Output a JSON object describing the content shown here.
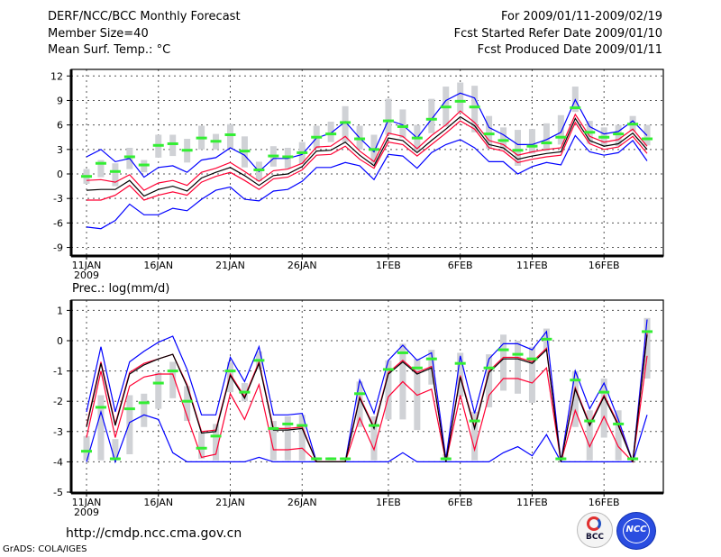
{
  "header": {
    "title": "DERF/NCC/BCC Monthly Forecast",
    "member_size": "Member Size=40",
    "variable": "Mean Surf. Temp.: °C",
    "period": "For 2009/01/11-2009/02/19",
    "started": "Fcst Started Refer Date 2009/01/10",
    "produced": "Fcst Produced Date 2009/01/11"
  },
  "footer": {
    "url": "http://cmdp.ncc.cma.gov.cn",
    "grads": "GrADS: COLA/IGES",
    "logo_bcc": "BCC",
    "logo_ncc": "NCC"
  },
  "colors": {
    "envelope": "#0000ff",
    "spread": "#ff0033",
    "mean": "#000000",
    "observed": "#33ee33",
    "range": "#d0d2d6"
  },
  "chart_data": [
    {
      "type": "line",
      "title": "Mean Surf. Temp.: °C",
      "x_tick_labels": [
        "11JAN",
        "16JAN",
        "21JAN",
        "26JAN",
        "1FEB",
        "6FEB",
        "11FEB",
        "16FEB"
      ],
      "x_tick_days": [
        0,
        5,
        10,
        15,
        21,
        26,
        31,
        36
      ],
      "year_label": "2009",
      "y_ticks": [
        12,
        9,
        6,
        3,
        0,
        -3,
        -6,
        -9
      ],
      "ylim": [
        -10.5,
        13.2
      ],
      "days": 40,
      "grid": true,
      "series": [
        {
          "name": "max",
          "color": "#0000ff",
          "values": [
            2.1,
            3.0,
            1.5,
            1.9,
            -0.4,
            0.8,
            1.0,
            0.2,
            1.7,
            2.0,
            3.2,
            2.3,
            0.3,
            1.9,
            1.9,
            2.4,
            4.4,
            5.0,
            6.4,
            4.4,
            2.7,
            6.6,
            6.0,
            4.4,
            6.7,
            9.0,
            9.9,
            9.3,
            5.7,
            4.8,
            3.6,
            3.6,
            4.2,
            5.1,
            9.1,
            5.8,
            4.9,
            5.2,
            6.5,
            4.7
          ]
        },
        {
          "name": "min",
          "color": "#0000ff",
          "values": [
            -6.5,
            -6.7,
            -5.7,
            -3.7,
            -5.0,
            -5.0,
            -4.2,
            -4.5,
            -3.1,
            -2.0,
            -1.6,
            -3.1,
            -3.3,
            -2.1,
            -1.9,
            -0.9,
            0.8,
            0.8,
            1.4,
            1.0,
            -0.7,
            2.4,
            2.2,
            0.7,
            2.6,
            3.6,
            4.2,
            3.2,
            1.5,
            1.5,
            0.0,
            0.9,
            1.4,
            1.1,
            4.7,
            2.7,
            2.3,
            2.6,
            4.1,
            1.6
          ]
        },
        {
          "name": "upper",
          "color": "#ff0033",
          "values": [
            -0.8,
            -0.7,
            -1.0,
            -0.1,
            -2.0,
            -1.1,
            -0.8,
            -1.4,
            0.2,
            0.7,
            1.4,
            0.3,
            -0.9,
            0.4,
            0.6,
            1.3,
            3.3,
            3.4,
            4.6,
            2.8,
            1.5,
            5.0,
            4.6,
            3.1,
            4.7,
            6.0,
            7.7,
            6.3,
            4.1,
            3.6,
            2.3,
            2.7,
            3.0,
            3.2,
            7.3,
            4.6,
            3.9,
            4.2,
            5.5,
            3.4
          ]
        },
        {
          "name": "lower",
          "color": "#ff0033",
          "values": [
            -3.2,
            -3.2,
            -2.6,
            -1.4,
            -3.2,
            -2.6,
            -2.2,
            -2.6,
            -1.0,
            -0.3,
            0.2,
            -0.8,
            -1.9,
            -0.6,
            -0.4,
            0.5,
            2.3,
            2.4,
            3.4,
            1.8,
            0.7,
            3.9,
            3.6,
            2.2,
            3.6,
            5.0,
            6.5,
            5.5,
            3.2,
            2.8,
            1.4,
            1.8,
            2.1,
            2.3,
            6.3,
            3.7,
            3.0,
            3.3,
            4.6,
            2.5
          ]
        },
        {
          "name": "mean",
          "color": "#000000",
          "values": [
            -2.0,
            -1.9,
            -1.9,
            -0.8,
            -2.7,
            -1.9,
            -1.5,
            -2.1,
            -0.5,
            0.2,
            0.8,
            -0.2,
            -1.4,
            -0.2,
            0.0,
            0.9,
            2.8,
            2.9,
            3.9,
            2.3,
            1.0,
            4.4,
            4.1,
            2.6,
            4.1,
            5.5,
            7.0,
            5.9,
            3.6,
            3.2,
            1.8,
            2.2,
            2.5,
            2.7,
            6.8,
            4.1,
            3.4,
            3.7,
            5.0,
            3.0
          ]
        }
      ],
      "range_hi": [
        0.6,
        1.7,
        1.3,
        3.2,
        1.7,
        4.8,
        4.8,
        4.3,
        5.9,
        4.9,
        6.1,
        4.6,
        1.5,
        3.4,
        3.2,
        3.9,
        5.9,
        6.4,
        8.3,
        5.9,
        4.8,
        9.2,
        7.9,
        6.0,
        9.2,
        10.7,
        11.2,
        10.8,
        7.1,
        5.7,
        5.4,
        5.5,
        6.2,
        7.2,
        10.7,
        6.5,
        5.7,
        6.0,
        7.1,
        6.0
      ],
      "range_lo": [
        -1.2,
        -0.4,
        -1.5,
        0.6,
        0.2,
        2.0,
        2.2,
        1.4,
        3.0,
        3.0,
        3.1,
        0.8,
        -0.9,
        0.9,
        0.7,
        1.2,
        3.1,
        3.9,
        3.9,
        3.0,
        1.2,
        4.8,
        4.4,
        2.7,
        5.0,
        5.8,
        7.6,
        5.1,
        3.1,
        3.0,
        1.0,
        2.5,
        2.8,
        3.6,
        7.6,
        3.7,
        3.5,
        3.4,
        5.2,
        3.5
      ],
      "observed": [
        -0.3,
        1.3,
        0.3,
        2.1,
        1.1,
        3.5,
        3.7,
        2.9,
        4.4,
        4.0,
        4.8,
        2.8,
        0.5,
        2.2,
        2.1,
        2.6,
        4.5,
        4.9,
        6.3,
        4.3,
        3.0,
        6.5,
        5.8,
        4.4,
        6.7,
        8.2,
        8.9,
        8.2,
        4.9,
        4.1,
        2.9,
        3.4,
        3.8,
        4.5,
        8.1,
        5.1,
        4.5,
        4.9,
        6.1,
        4.3
      ]
    },
    {
      "type": "line",
      "title": "Prec.: log(mm/d)",
      "x_tick_labels": [
        "11JAN",
        "16JAN",
        "21JAN",
        "26JAN",
        "1FEB",
        "6FEB",
        "11FEB",
        "16FEB"
      ],
      "x_tick_days": [
        0,
        5,
        10,
        15,
        21,
        26,
        31,
        36
      ],
      "year_label": "2009",
      "y_ticks": [
        1,
        0,
        -1,
        -2,
        -3,
        -4,
        -5
      ],
      "ylim": [
        -5,
        1.35
      ],
      "days": 40,
      "grid": true,
      "series": [
        {
          "name": "max",
          "color": "#0000ff",
          "values": [
            -2.35,
            -0.2,
            -2.35,
            -0.7,
            -0.35,
            -0.05,
            0.15,
            -0.95,
            -2.45,
            -2.45,
            -0.55,
            -1.35,
            -0.2,
            -2.45,
            -2.45,
            -2.4,
            -4,
            -4,
            -4,
            -1.3,
            -2.4,
            -0.65,
            -0.15,
            -0.65,
            -0.4,
            -3.9,
            -0.5,
            -2.4,
            -0.6,
            -0.1,
            -0.1,
            -0.3,
            0.3,
            -4,
            -1.0,
            -2.25,
            -1.4,
            -2.6,
            -4,
            0.7
          ]
        },
        {
          "name": "min",
          "color": "#0000ff",
          "values": [
            -4,
            -2.35,
            -4,
            -2.7,
            -2.45,
            -2.6,
            -3.7,
            -4,
            -4,
            -4,
            -4,
            -4,
            -3.85,
            -4,
            -4,
            -4,
            -4,
            -4,
            -4,
            -4,
            -4,
            -4,
            -3.7,
            -4,
            -4,
            -4,
            -4,
            -4,
            -4,
            -3.7,
            -3.5,
            -3.8,
            -3.1,
            -4,
            -4,
            -4,
            -4,
            -4,
            -4,
            -2.45
          ]
        },
        {
          "name": "upper",
          "color": "#ff0033",
          "values": [
            -2.8,
            -0.7,
            -2.75,
            -1.05,
            -0.75,
            -0.6,
            -0.45,
            -1.45,
            -3.0,
            -2.95,
            -1.1,
            -1.85,
            -0.7,
            -2.9,
            -2.9,
            -2.85,
            -4,
            -4,
            -4,
            -1.85,
            -2.85,
            -1.05,
            -0.65,
            -1.05,
            -0.85,
            -4,
            -1.15,
            -2.85,
            -1.0,
            -0.55,
            -0.55,
            -0.7,
            -0.25,
            -4,
            -1.55,
            -2.75,
            -1.8,
            -2.75,
            -4,
            0.25
          ]
        },
        {
          "name": "lower",
          "color": "#ff0033",
          "values": [
            -3.2,
            -1.0,
            -3.2,
            -1.5,
            -1.2,
            -1.1,
            -1.1,
            -2.5,
            -3.85,
            -3.75,
            -1.75,
            -2.6,
            -1.45,
            -3.6,
            -3.6,
            -3.55,
            -4,
            -4,
            -4,
            -2.55,
            -3.6,
            -1.85,
            -1.35,
            -1.8,
            -1.6,
            -4,
            -1.8,
            -3.6,
            -1.8,
            -1.25,
            -1.25,
            -1.4,
            -0.9,
            -4,
            -2.3,
            -3.5,
            -2.5,
            -3.5,
            -4,
            -0.5
          ]
        },
        {
          "name": "mean",
          "color": "#000000",
          "values": [
            -2.85,
            -0.75,
            -2.8,
            -1.1,
            -0.8,
            -0.6,
            -0.45,
            -1.5,
            -3.05,
            -3.0,
            -1.15,
            -1.9,
            -0.75,
            -2.95,
            -2.95,
            -2.9,
            -4,
            -4,
            -4,
            -1.9,
            -2.9,
            -1.1,
            -0.7,
            -1.1,
            -0.9,
            -4,
            -1.2,
            -2.9,
            -1.05,
            -0.6,
            -0.6,
            -0.75,
            -0.3,
            -4,
            -1.6,
            -2.8,
            -1.85,
            -2.8,
            -4,
            0.2
          ]
        }
      ],
      "range_hi": [
        -3.15,
        -1.8,
        -3.25,
        -1.8,
        -1.75,
        -1.05,
        -0.7,
        -1.5,
        -3.0,
        -2.75,
        -0.7,
        -1.4,
        -0.35,
        -2.65,
        -2.5,
        -2.45,
        -3.85,
        -3.85,
        -3.85,
        -1.35,
        -2.5,
        -0.65,
        -0.1,
        -0.6,
        -0.3,
        -3.75,
        -0.4,
        -2.35,
        -0.45,
        0.2,
        0.0,
        -0.2,
        0.4,
        -3.8,
        -1.0,
        -2.3,
        -1.25,
        -2.3,
        -3.85,
        0.75
      ],
      "range_lo": [
        -3.95,
        -3.95,
        -3.95,
        -3.75,
        -2.85,
        -2.25,
        -1.9,
        -2.65,
        -3.9,
        -3.95,
        -1.7,
        -2.0,
        -0.95,
        -3.95,
        -3.95,
        -3.95,
        -3.95,
        -3.95,
        -3.95,
        -2.85,
        -3.95,
        -2.6,
        -2.6,
        -2.95,
        -1.45,
        -3.95,
        -1.85,
        -3.95,
        -2.2,
        -1.65,
        -1.75,
        -2.05,
        -0.35,
        -3.95,
        -2.85,
        -3.95,
        -3.2,
        -3.95,
        -3.95,
        -1.25
      ],
      "observed": [
        -3.65,
        -2.2,
        -3.9,
        -2.25,
        -2.05,
        -1.4,
        -1.0,
        -2.0,
        -3.55,
        -3.15,
        -1.0,
        -1.7,
        -0.65,
        -2.9,
        -2.75,
        -2.8,
        -3.9,
        -3.9,
        -3.9,
        -1.75,
        -2.8,
        -0.95,
        -0.4,
        -0.9,
        -0.6,
        -3.9,
        -0.75,
        -2.65,
        -0.9,
        -0.3,
        -0.45,
        -0.6,
        0.05,
        -3.9,
        -1.3,
        -2.65,
        -1.7,
        -2.75,
        -3.9,
        0.3
      ]
    }
  ]
}
